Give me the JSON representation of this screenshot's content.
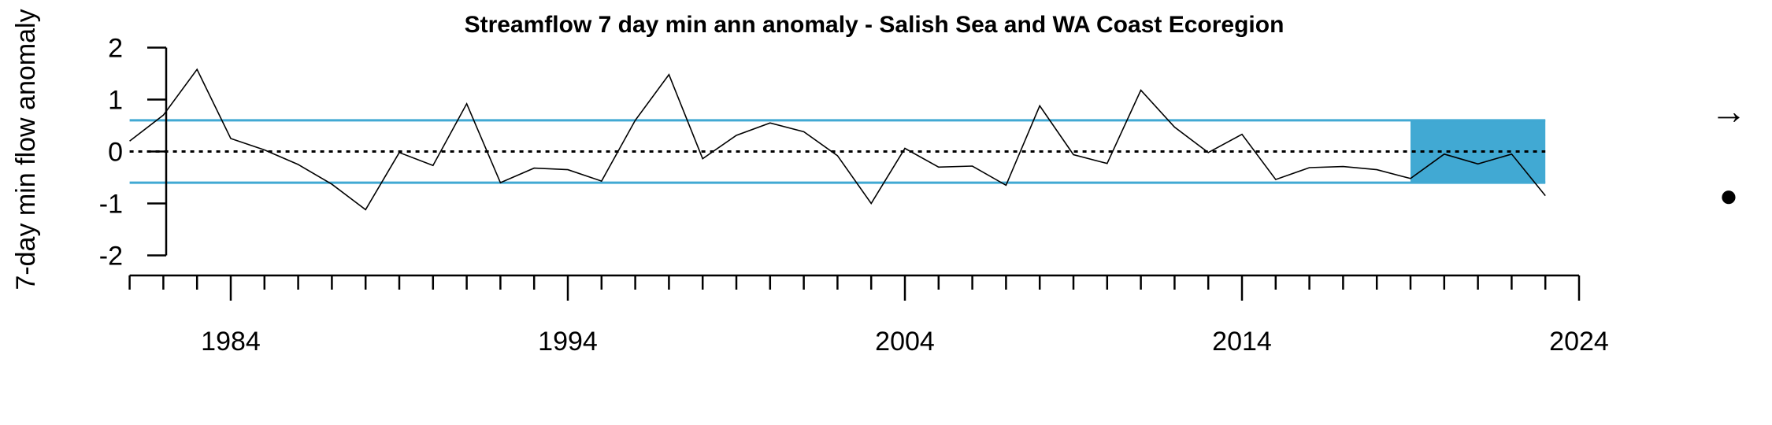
{
  "chart_data": {
    "type": "line",
    "title": "Streamflow 7 day min ann anomaly - Salish Sea and WA Coast Ecoregion",
    "xlabel": "",
    "ylabel": "7-day min flow anomaly",
    "xlim": [
      1981,
      2024
    ],
    "ylim": [
      -2,
      2
    ],
    "x_ticks": [
      1984,
      1994,
      2004,
      2014,
      2024
    ],
    "y_ticks": [
      2,
      1,
      0,
      -1,
      -2
    ],
    "grid": false,
    "mean": 0,
    "sd_band": [
      -0.6,
      0.6
    ],
    "highlight_range": [
      2019,
      2023
    ],
    "series": [
      {
        "x": [
          1981,
          1982,
          1983,
          1984,
          1985,
          1986,
          1987,
          1988,
          1989,
          1990,
          1991,
          1992,
          1993,
          1994,
          1995,
          1996,
          1997,
          1998,
          1999,
          2000,
          2001,
          2002,
          2003,
          2004,
          2005,
          2006,
          2007,
          2008,
          2009,
          2010,
          2011,
          2012,
          2013,
          2014,
          2015,
          2016,
          2017,
          2018,
          2019,
          2020,
          2021,
          2022,
          2023
        ],
        "values": [
          0.2,
          0.7,
          1.58,
          0.25,
          0.03,
          -0.25,
          -0.63,
          -1.12,
          -0.02,
          -0.27,
          0.92,
          -0.6,
          -0.32,
          -0.35,
          -0.57,
          0.6,
          1.48,
          -0.14,
          0.31,
          0.55,
          0.38,
          -0.08,
          -1.0,
          0.06,
          -0.3,
          -0.28,
          -0.65,
          0.88,
          -0.06,
          -0.23,
          1.18,
          0.47,
          -0.02,
          0.33,
          -0.54,
          -0.31,
          -0.29,
          -0.35,
          -0.52,
          -0.05,
          -0.24,
          -0.05,
          -0.85
        ]
      }
    ],
    "colors": {
      "band": "#41A9D3",
      "line": "#000000"
    },
    "side_symbols": {
      "trend": "→",
      "mean_status": "●"
    }
  }
}
